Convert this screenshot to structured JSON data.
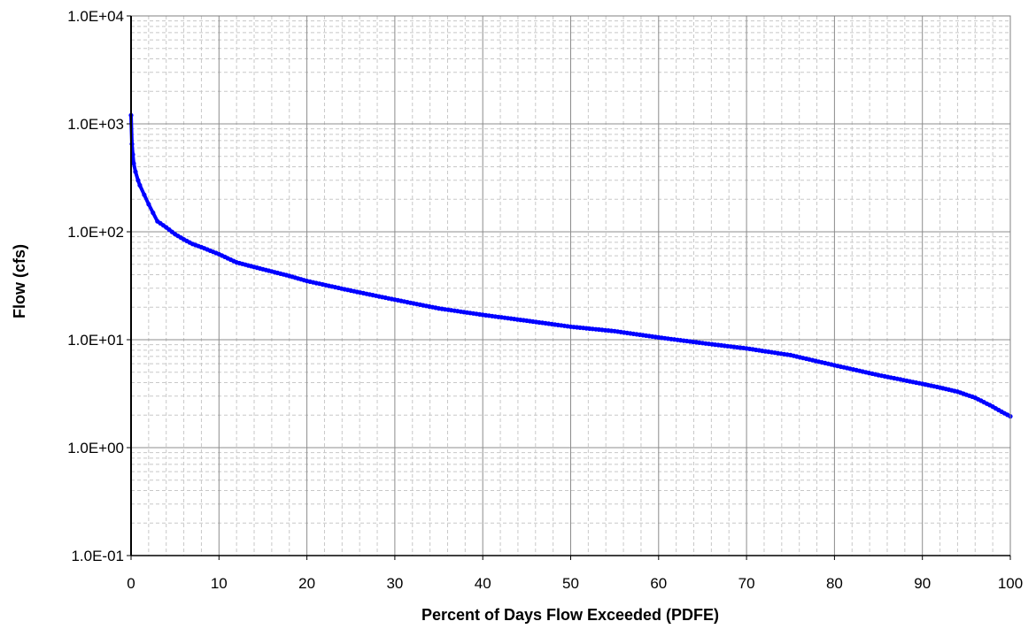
{
  "chart_data": {
    "type": "line",
    "title": "",
    "xlabel": "Percent of Days Flow Exceeded (PDFE)",
    "ylabel": "Flow (cfs)",
    "xlim": [
      0,
      100
    ],
    "ylim": [
      0.1,
      10000
    ],
    "y_scale": "log",
    "grid": true,
    "x_ticks": [
      0,
      10,
      20,
      30,
      40,
      50,
      60,
      70,
      80,
      90,
      100
    ],
    "x_tick_labels": [
      "0",
      "10",
      "20",
      "30",
      "40",
      "50",
      "60",
      "70",
      "80",
      "90",
      "100"
    ],
    "y_ticks": [
      0.1,
      1,
      10,
      100,
      1000,
      10000
    ],
    "y_tick_labels": [
      "1.0E-01",
      "1.0E+00",
      "1.0E+01",
      "1.0E+02",
      "1.0E+03",
      "1.0E+04"
    ],
    "series_color": "#0000ff",
    "series": [
      {
        "x": [
          0,
          0.1,
          0.2,
          0.3,
          0.5,
          0.8,
          1,
          1.5,
          2,
          2.5,
          3,
          4,
          5,
          6,
          7,
          8,
          10,
          12,
          15,
          18,
          20,
          25,
          30,
          35,
          40,
          45,
          50,
          55,
          60,
          65,
          70,
          75,
          80,
          85,
          90,
          92,
          94,
          96,
          98,
          99,
          100
        ],
        "y": [
          1200,
          650,
          520,
          430,
          360,
          300,
          270,
          220,
          180,
          150,
          125,
          110,
          95,
          85,
          77,
          72,
          62,
          52,
          45,
          39,
          35,
          28.5,
          23.5,
          19.5,
          17,
          15,
          13.2,
          12,
          10.5,
          9.3,
          8.3,
          7.2,
          5.8,
          4.7,
          3.9,
          3.6,
          3.3,
          2.9,
          2.4,
          2.15,
          1.95
        ]
      }
    ]
  }
}
